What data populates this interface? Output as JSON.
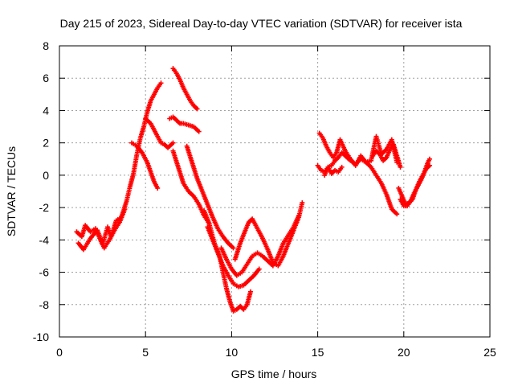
{
  "chart_data": {
    "type": "scatter",
    "title": "Day 215 of 2023, Sidereal Day-to-day VTEC variation (SDTVAR) for receiver ista",
    "xlabel": "GPS time / hours",
    "ylabel": "SDTVAR / TECUs",
    "xlim": [
      0,
      25
    ],
    "ylim": [
      -10,
      8
    ],
    "xticks": [
      0,
      5,
      10,
      15,
      20,
      25
    ],
    "yticks": [
      -10,
      -8,
      -6,
      -4,
      -2,
      0,
      2,
      4,
      6,
      8
    ],
    "grid": true,
    "legend": "none",
    "marker": "plus",
    "color": "#ff0000",
    "segments": [
      {
        "x": [
          1.0,
          1.3,
          1.5,
          1.8,
          2.1,
          2.5,
          2.8,
          3.0,
          3.3,
          3.6,
          3.9,
          4.1,
          4.3,
          4.5,
          4.7,
          4.9,
          5.1,
          5.3,
          5.5,
          5.7,
          5.9
        ],
        "y": [
          -3.5,
          -3.8,
          -3.1,
          -3.5,
          -3.3,
          -4.3,
          -3.2,
          -3.8,
          -2.8,
          -2.6,
          -1.6,
          -0.7,
          0.1,
          1.3,
          2.3,
          3.0,
          3.9,
          4.6,
          5.0,
          5.4,
          5.7
        ]
      },
      {
        "x": [
          1.1,
          1.4,
          1.8,
          2.2,
          2.6,
          2.9,
          3.2,
          3.5,
          3.8
        ],
        "y": [
          -4.2,
          -4.6,
          -3.9,
          -3.4,
          -4.5,
          -4.0,
          -3.4,
          -2.9,
          -2.1
        ]
      },
      {
        "x": [
          4.2,
          4.5,
          4.8,
          5.1,
          5.3,
          5.5,
          5.7
        ],
        "y": [
          2.0,
          1.8,
          1.4,
          0.8,
          0.2,
          -0.4,
          -0.8
        ]
      },
      {
        "x": [
          5.0,
          5.3,
          5.6,
          5.9,
          6.1,
          6.3,
          6.6
        ],
        "y": [
          3.5,
          3.2,
          2.6,
          2.0,
          1.9,
          1.7,
          2.0
        ]
      },
      {
        "x": [
          6.6,
          6.8,
          7.0,
          7.2,
          7.4,
          7.6,
          7.8,
          8.0
        ],
        "y": [
          6.6,
          6.3,
          5.9,
          5.4,
          5.0,
          4.6,
          4.3,
          4.1
        ]
      },
      {
        "x": [
          6.4,
          6.6,
          6.8,
          7.0,
          7.2,
          7.5,
          7.8,
          8.1
        ],
        "y": [
          3.5,
          3.6,
          3.4,
          3.2,
          3.2,
          3.1,
          3.0,
          2.7
        ]
      },
      {
        "x": [
          6.6,
          6.9,
          7.2,
          7.5,
          7.8,
          8.1,
          8.4,
          8.7
        ],
        "y": [
          1.5,
          0.5,
          -0.5,
          -1.0,
          -1.3,
          -1.8,
          -2.5,
          -3.0
        ]
      },
      {
        "x": [
          7.4,
          7.7,
          8.0,
          8.3,
          8.6,
          8.9,
          9.2,
          9.5,
          9.8,
          10.1
        ],
        "y": [
          1.8,
          0.8,
          -0.2,
          -1.0,
          -1.8,
          -2.6,
          -3.3,
          -3.8,
          -4.2,
          -4.5
        ]
      },
      {
        "x": [
          8.4,
          8.7,
          9.0,
          9.3,
          9.5,
          9.7,
          9.9,
          10.1,
          10.3,
          10.5,
          10.7,
          10.9,
          11.1
        ],
        "y": [
          -2.2,
          -3.0,
          -4.2,
          -5.0,
          -6.0,
          -7.0,
          -7.8,
          -8.4,
          -8.3,
          -8.1,
          -8.3,
          -8.0,
          -7.2
        ]
      },
      {
        "x": [
          8.6,
          8.9,
          9.2,
          9.5,
          9.8,
          10.1,
          10.4,
          10.7,
          11.0,
          11.3,
          11.6
        ],
        "y": [
          -3.2,
          -4.0,
          -4.8,
          -5.6,
          -6.2,
          -6.7,
          -6.9,
          -6.8,
          -6.5,
          -6.2,
          -5.8
        ]
      },
      {
        "x": [
          9.4,
          9.7,
          10.0,
          10.3,
          10.6,
          10.9,
          11.2,
          11.5,
          11.8,
          12.1,
          12.4,
          12.7,
          13.0,
          13.3,
          13.6,
          13.9
        ],
        "y": [
          -4.5,
          -5.2,
          -5.8,
          -6.2,
          -6.0,
          -5.5,
          -5.0,
          -4.8,
          -5.0,
          -5.3,
          -5.6,
          -5.0,
          -4.2,
          -3.7,
          -3.2,
          -2.5
        ]
      },
      {
        "x": [
          10.2,
          10.5,
          10.8,
          11.0,
          11.2,
          11.5,
          11.8,
          12.1,
          12.4,
          12.7,
          13.0,
          13.3,
          13.6,
          13.9,
          14.1
        ],
        "y": [
          -5.2,
          -4.2,
          -3.4,
          -2.9,
          -2.7,
          -3.3,
          -3.9,
          -4.6,
          -5.4,
          -5.6,
          -5.0,
          -4.2,
          -3.4,
          -2.6,
          -1.7
        ]
      },
      {
        "x": [
          15.0,
          15.2,
          15.4,
          15.6,
          15.8,
          16.0,
          16.2,
          16.4,
          16.6,
          16.9,
          17.2,
          17.5,
          17.8,
          18.1,
          18.4,
          18.7,
          19.0,
          19.3,
          19.6
        ],
        "y": [
          0.6,
          0.3,
          0.2,
          0.5,
          0.6,
          0.9,
          1.1,
          1.4,
          1.2,
          0.9,
          0.7,
          1.0,
          0.8,
          0.5,
          0.0,
          -0.5,
          -1.2,
          -2.1,
          -2.4
        ]
      },
      {
        "x": [
          15.1,
          15.3,
          15.5,
          15.7,
          15.9,
          16.1,
          16.3,
          16.6,
          16.9,
          17.2,
          17.5,
          17.8,
          18.1,
          18.4,
          18.7,
          19.0,
          19.3,
          19.6
        ],
        "y": [
          2.6,
          2.3,
          1.8,
          1.4,
          1.1,
          1.4,
          2.2,
          1.5,
          1.0,
          0.6,
          1.2,
          0.8,
          0.9,
          2.4,
          1.3,
          1.6,
          2.2,
          0.8
        ]
      },
      {
        "x": [
          15.4,
          15.6,
          15.8,
          16.0,
          16.2,
          16.4
        ],
        "y": [
          0.0,
          0.5,
          0.1,
          0.3,
          0.2,
          0.5
        ]
      },
      {
        "x": [
          18.2,
          18.4,
          18.6,
          18.8,
          19.0,
          19.2,
          19.4,
          19.6,
          19.8
        ],
        "y": [
          1.2,
          1.5,
          1.3,
          0.9,
          1.1,
          1.6,
          1.9,
          1.2,
          0.5
        ]
      },
      {
        "x": [
          19.7,
          19.9,
          20.1,
          20.3,
          20.5,
          20.7,
          20.9,
          21.1,
          21.3,
          21.5
        ],
        "y": [
          -0.8,
          -1.3,
          -1.8,
          -1.7,
          -1.5,
          -0.9,
          -0.4,
          0.0,
          0.4,
          0.6
        ]
      },
      {
        "x": [
          19.8,
          20.0,
          20.2,
          20.4,
          20.6,
          20.8,
          21.0,
          21.2,
          21.4,
          21.5
        ],
        "y": [
          -1.5,
          -1.9,
          -1.9,
          -1.6,
          -1.1,
          -0.7,
          -0.3,
          0.2,
          0.8,
          1.0
        ]
      }
    ]
  }
}
